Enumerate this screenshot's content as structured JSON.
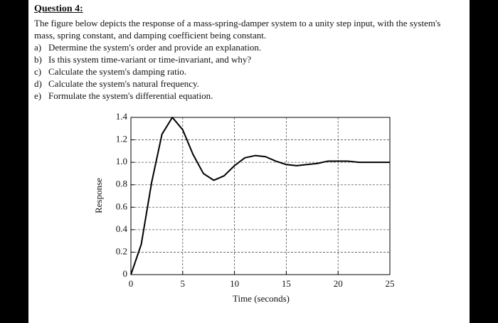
{
  "header": {
    "title": "Question 4:"
  },
  "body": "The figure below depicts the response of a mass-spring-damper system to a unity step input, with the system's mass, spring constant, and damping coefficient being constant.",
  "items": [
    {
      "label": "a)",
      "text": "Determine the system's order and provide an explanation."
    },
    {
      "label": "b)",
      "text": "Is this system time-variant or time-invariant, and why?"
    },
    {
      "label": "c)",
      "text": "Calculate the system's damping ratio."
    },
    {
      "label": "d)",
      "text": "Calculate the system's natural frequency."
    },
    {
      "label": "e)",
      "text": "Formulate the system's differential equation."
    }
  ],
  "chart_data": {
    "type": "line",
    "x_label": "Time (seconds)",
    "y_label": "Response",
    "x": [
      0,
      1,
      2,
      3,
      4,
      5,
      6,
      7,
      8,
      9,
      10,
      11,
      12,
      13,
      14,
      15,
      16,
      17,
      18,
      19,
      20,
      21,
      22,
      23,
      24,
      25
    ],
    "values": [
      0,
      0.27,
      0.82,
      1.25,
      1.4,
      1.29,
      1.07,
      0.9,
      0.84,
      0.88,
      0.97,
      1.04,
      1.06,
      1.05,
      1.01,
      0.98,
      0.97,
      0.98,
      0.99,
      1.01,
      1.01,
      1.01,
      1.0,
      1.0,
      1.0,
      1.0
    ],
    "color": "#000000",
    "xlim": [
      0,
      25
    ],
    "xticks": [
      0,
      5,
      10,
      15,
      20,
      25
    ],
    "ylim": [
      0,
      1.4
    ],
    "yticks": [
      0,
      0.2,
      0.4,
      0.6,
      0.8,
      {
        "value": 1,
        "label": "1.0"
      },
      1.2,
      1.4
    ],
    "grid": true
  }
}
